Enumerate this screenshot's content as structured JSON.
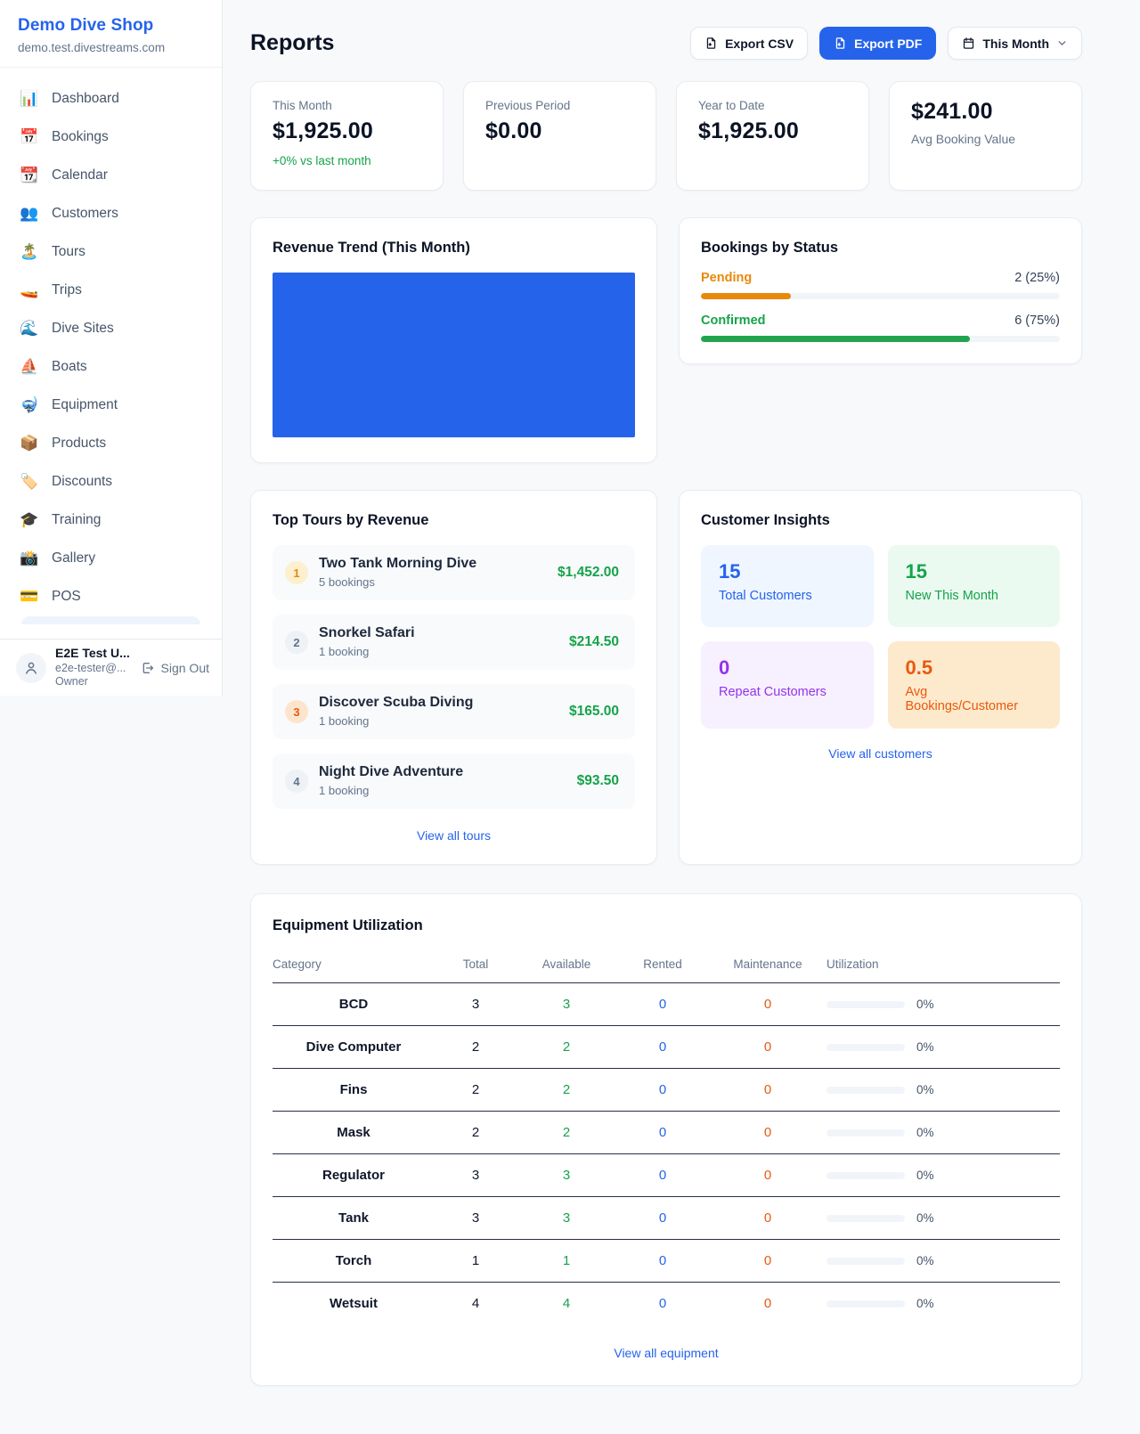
{
  "colors": {
    "accent": "#2563eb",
    "green": "#16a34a",
    "orange": "#e8890b",
    "bronze_orange": "#ea580c",
    "purple": "#9333ea",
    "chart_bar": "#2563eb"
  },
  "brand": {
    "name": "Demo Dive Shop",
    "domain": "demo.test.divestreams.com"
  },
  "sidebar": {
    "items": [
      {
        "icon": "📊",
        "label": "Dashboard"
      },
      {
        "icon": "📅",
        "label": "Bookings"
      },
      {
        "icon": "📆",
        "label": "Calendar"
      },
      {
        "icon": "👥",
        "label": "Customers"
      },
      {
        "icon": "🏝️",
        "label": "Tours"
      },
      {
        "icon": "🚤",
        "label": "Trips"
      },
      {
        "icon": "🌊",
        "label": "Dive Sites"
      },
      {
        "icon": "⛵",
        "label": "Boats"
      },
      {
        "icon": "🤿",
        "label": "Equipment"
      },
      {
        "icon": "📦",
        "label": "Products"
      },
      {
        "icon": "🏷️",
        "label": "Discounts"
      },
      {
        "icon": "🎓",
        "label": "Training"
      },
      {
        "icon": "📸",
        "label": "Gallery"
      },
      {
        "icon": "💳",
        "label": "POS"
      }
    ]
  },
  "user": {
    "name": "E2E Test U...",
    "email": "e2e-tester@...",
    "role": "Owner",
    "sign_out": "Sign Out"
  },
  "header": {
    "title": "Reports",
    "export_csv": "Export CSV",
    "export_pdf": "Export PDF",
    "period": "This Month"
  },
  "stats": [
    {
      "label": "This Month",
      "value": "$1,925.00",
      "delta": "+0% vs last month"
    },
    {
      "label": "Previous Period",
      "value": "$0.00"
    },
    {
      "label": "Year to Date",
      "value": "$1,925.00"
    },
    {
      "value": "$241.00",
      "label": "Avg Booking Value"
    }
  ],
  "revenue_trend": {
    "title": "Revenue Trend (This Month)"
  },
  "bookings_status": {
    "title": "Bookings by Status",
    "rows": [
      {
        "label": "Pending",
        "count_text": "2 (25%)",
        "pct": 25,
        "color": "#e8890b"
      },
      {
        "label": "Confirmed",
        "count_text": "6 (75%)",
        "pct": 75,
        "color": "#22a34f"
      }
    ]
  },
  "top_tours": {
    "title": "Top Tours by Revenue",
    "items": [
      {
        "rank": "1",
        "name": "Two Tank Morning Dive",
        "bookings": "5 bookings",
        "revenue": "$1,452.00"
      },
      {
        "rank": "2",
        "name": "Snorkel Safari",
        "bookings": "1 booking",
        "revenue": "$214.50"
      },
      {
        "rank": "3",
        "name": "Discover Scuba Diving",
        "bookings": "1 booking",
        "revenue": "$165.00"
      },
      {
        "rank": "4",
        "name": "Night Dive Adventure",
        "bookings": "1 booking",
        "revenue": "$93.50"
      }
    ],
    "view_all": "View all tours"
  },
  "customer_insights": {
    "title": "Customer Insights",
    "tiles": [
      {
        "value": "15",
        "label": "Total Customers"
      },
      {
        "value": "15",
        "label": "New This Month"
      },
      {
        "value": "0",
        "label": "Repeat Customers"
      },
      {
        "value": "0.5",
        "label": "Avg Bookings/Customer"
      }
    ],
    "view_all": "View all customers"
  },
  "equipment": {
    "title": "Equipment Utilization",
    "columns": [
      "Category",
      "Total",
      "Available",
      "Rented",
      "Maintenance",
      "Utilization"
    ],
    "rows": [
      {
        "category": "BCD",
        "total": "3",
        "available": "3",
        "rented": "0",
        "maintenance": "0",
        "utilization": "0%",
        "utilization_pct": 0
      },
      {
        "category": "Dive Computer",
        "total": "2",
        "available": "2",
        "rented": "0",
        "maintenance": "0",
        "utilization": "0%",
        "utilization_pct": 0
      },
      {
        "category": "Fins",
        "total": "2",
        "available": "2",
        "rented": "0",
        "maintenance": "0",
        "utilization": "0%",
        "utilization_pct": 0
      },
      {
        "category": "Mask",
        "total": "2",
        "available": "2",
        "rented": "0",
        "maintenance": "0",
        "utilization": "0%",
        "utilization_pct": 0
      },
      {
        "category": "Regulator",
        "total": "3",
        "available": "3",
        "rented": "0",
        "maintenance": "0",
        "utilization": "0%",
        "utilization_pct": 0
      },
      {
        "category": "Tank",
        "total": "3",
        "available": "3",
        "rented": "0",
        "maintenance": "0",
        "utilization": "0%",
        "utilization_pct": 0
      },
      {
        "category": "Torch",
        "total": "1",
        "available": "1",
        "rented": "0",
        "maintenance": "0",
        "utilization": "0%",
        "utilization_pct": 0
      },
      {
        "category": "Wetsuit",
        "total": "4",
        "available": "4",
        "rented": "0",
        "maintenance": "0",
        "utilization": "0%",
        "utilization_pct": 0
      }
    ],
    "view_all": "View all equipment"
  },
  "chart_data": [
    {
      "type": "bar",
      "title": "Revenue Trend (This Month)",
      "categories": [
        "This Month"
      ],
      "series": [
        {
          "name": "Revenue",
          "values": [
            1925.0
          ]
        }
      ],
      "xlabel": "",
      "ylabel": "",
      "legend": false,
      "grid": false,
      "bar_color": "#2563eb",
      "layout_hint": "single bar fills entire plot area; no axes or tick labels visible"
    },
    {
      "type": "bar",
      "title": "Bookings by Status",
      "orientation": "horizontal",
      "categories": [
        "Pending",
        "Confirmed"
      ],
      "values": [
        2,
        6
      ],
      "percent": [
        25,
        75
      ],
      "value_labels": [
        "2 (25%)",
        "6 (75%)"
      ],
      "colors": [
        "#e8890b",
        "#22a34f"
      ],
      "xlim": [
        0,
        100
      ],
      "legend": false
    }
  ]
}
